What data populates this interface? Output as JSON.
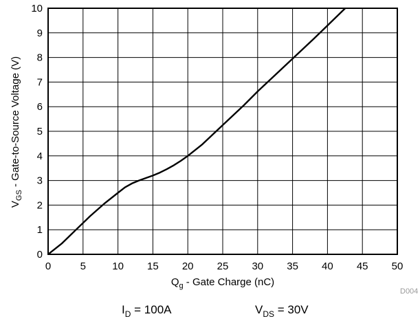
{
  "chart_data": {
    "type": "line",
    "title": "",
    "xlabel_main": "Q",
    "xlabel_sub": "g",
    "xlabel_rest": " - Gate Charge (nC)",
    "ylabel_main": "V",
    "ylabel_sub": "GS",
    "ylabel_rest": " - Gate-to-Source Voltage (V)",
    "xlim": [
      0,
      50
    ],
    "ylim": [
      0,
      10
    ],
    "x_ticks": [
      0,
      5,
      10,
      15,
      20,
      25,
      30,
      35,
      40,
      45,
      50
    ],
    "y_ticks": [
      0,
      1,
      2,
      3,
      4,
      5,
      6,
      7,
      8,
      9,
      10
    ],
    "grid": true,
    "series": [
      {
        "x": [
          0,
          2,
          4,
          6,
          8,
          10,
          11,
          12,
          13,
          14,
          15,
          16,
          17,
          18,
          19,
          20,
          22,
          25,
          28,
          30,
          32,
          35,
          38,
          40,
          42,
          44
        ],
        "y": [
          0,
          0.45,
          1.0,
          1.55,
          2.05,
          2.5,
          2.72,
          2.88,
          3.0,
          3.1,
          3.2,
          3.32,
          3.46,
          3.62,
          3.8,
          4.0,
          4.45,
          5.25,
          6.05,
          6.62,
          7.15,
          7.95,
          8.75,
          9.3,
          9.85,
          10.4
        ]
      }
    ],
    "conditions": {
      "id_main": "I",
      "id_sub": "D",
      "id_rest": " = 100A",
      "vds_main": "V",
      "vds_sub": "DS",
      "vds_rest": " = 30V"
    },
    "figure_code": "D004"
  }
}
